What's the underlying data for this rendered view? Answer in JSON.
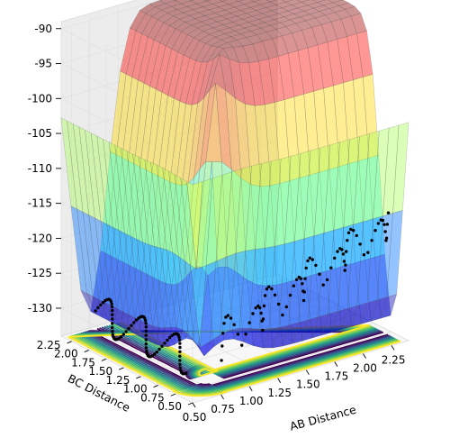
{
  "chart_data": {
    "type": "surface3d",
    "title": "",
    "xlabel": "AB Distance",
    "ylabel": "BC Distance",
    "zlabel": "",
    "x_ticks": [
      "0.50",
      "0.75",
      "1.00",
      "1.25",
      "1.50",
      "1.75",
      "2.00",
      "2.25"
    ],
    "y_ticks": [
      "0.50",
      "0.75",
      "1.00",
      "1.25",
      "1.50",
      "1.75",
      "2.00",
      "2.25"
    ],
    "z_ticks": [
      "-90",
      "-95",
      "-100",
      "-105",
      "-110",
      "-115",
      "-120",
      "-125",
      "-130"
    ],
    "xlim": [
      0.5,
      2.4
    ],
    "ylim": [
      0.5,
      2.4
    ],
    "zlim": [
      -134,
      -89
    ],
    "surface_plateau_z": -90,
    "surface_min_z": -132,
    "contour_levels": [
      -130,
      -128,
      -126,
      -124,
      -122,
      -120,
      -118,
      -116,
      -114,
      -112,
      -110
    ],
    "colormap": "jet",
    "contour_colormap": "viridis",
    "trajectory_color": "#000000"
  }
}
